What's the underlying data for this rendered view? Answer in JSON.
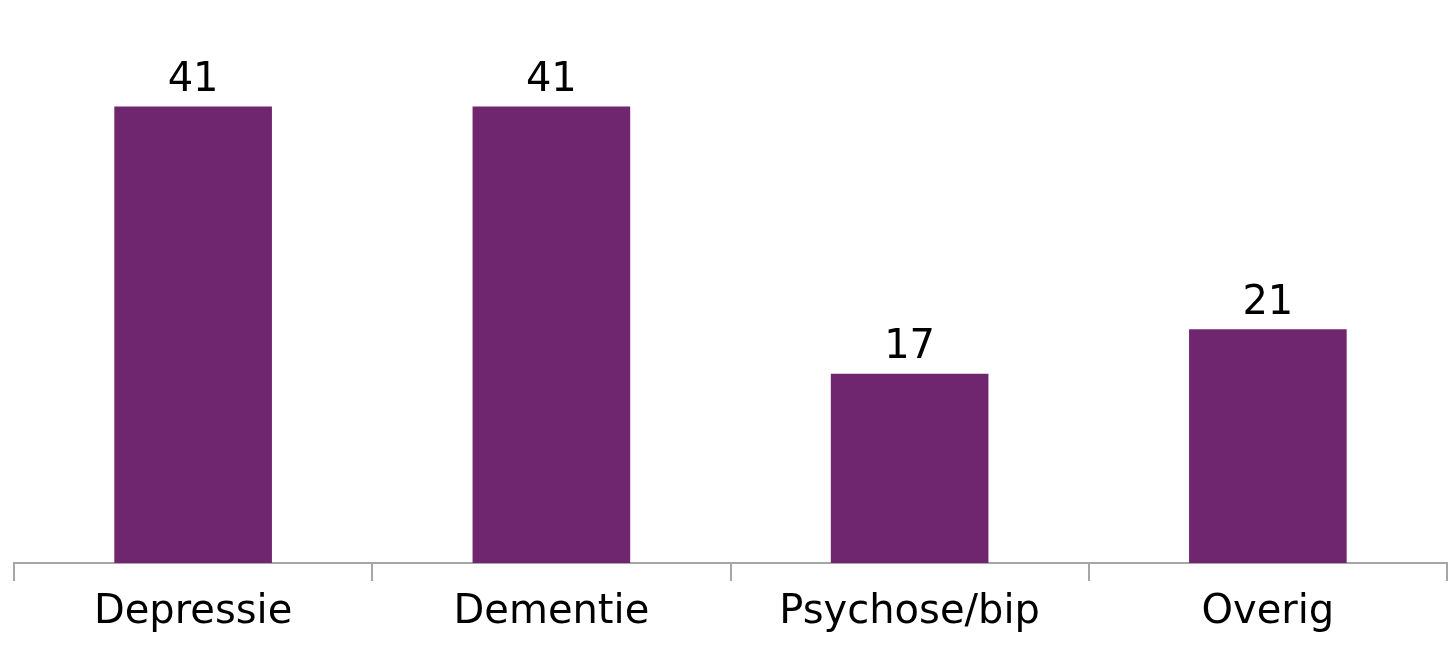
{
  "chart_data": {
    "type": "bar",
    "categories": [
      "Depressie",
      "Dementie",
      "Psychose/bip",
      "Overig"
    ],
    "values": [
      41,
      41,
      17,
      21
    ],
    "color": "#70266f",
    "data_labels": true,
    "grid": false,
    "legend": false
  }
}
